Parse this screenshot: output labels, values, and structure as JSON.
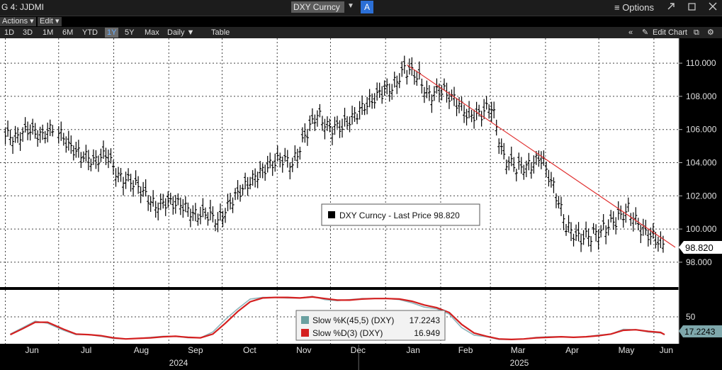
{
  "window": {
    "title": "G 4: JJDMI",
    "ticker": "DXY Curncy",
    "ticker_dropdown": "▼",
    "a_button": "A",
    "options_label": "≡ Options",
    "icons": [
      "expand-icon",
      "minimize-icon",
      "close-icon"
    ]
  },
  "menus": {
    "actions": "Actions ▾",
    "edit": "Edit ▾"
  },
  "ranges": [
    "1D",
    "3D",
    "1M",
    "6M",
    "YTD",
    "1Y",
    "5Y",
    "Max"
  ],
  "active_range": "1Y",
  "period": "Daily ▼",
  "table_label": "Table",
  "edit_chart_label": "Edit Chart",
  "chart_data": [
    {
      "type": "line",
      "style": "ohlc-bars",
      "series": [
        {
          "name": "DXY Curncy - Last Price",
          "last_value": 98.82,
          "last_label": "98.820",
          "color": "#000000",
          "x": [
            "2024-06-01",
            "2024-06-08",
            "2024-06-15",
            "2024-06-22",
            "2024-07-01",
            "2024-07-08",
            "2024-07-15",
            "2024-07-22",
            "2024-07-29",
            "2024-08-05",
            "2024-08-12",
            "2024-08-19",
            "2024-08-26",
            "2024-09-02",
            "2024-09-09",
            "2024-09-16",
            "2024-09-23",
            "2024-09-30",
            "2024-10-07",
            "2024-10-14",
            "2024-10-21",
            "2024-10-28",
            "2024-11-04",
            "2024-11-11",
            "2024-11-18",
            "2024-11-25",
            "2024-12-02",
            "2024-12-09",
            "2024-12-16",
            "2024-12-23",
            "2024-12-30",
            "2025-01-06",
            "2025-01-13",
            "2025-01-20",
            "2025-01-27",
            "2025-02-03",
            "2025-02-10",
            "2025-02-17",
            "2025-02-24",
            "2025-03-03",
            "2025-03-10",
            "2025-03-17",
            "2025-03-24",
            "2025-03-31",
            "2025-04-07",
            "2025-04-14",
            "2025-04-21",
            "2025-04-28",
            "2025-05-05",
            "2025-05-12",
            "2025-05-19",
            "2025-05-26",
            "2025-06-02",
            "2025-06-09"
          ],
          "values": [
            105.6,
            105.9,
            105.7,
            106.0,
            105.1,
            104.4,
            104.2,
            104.4,
            103.3,
            102.8,
            102.3,
            101.3,
            101.7,
            101.4,
            101.0,
            100.8,
            100.6,
            101.5,
            102.5,
            103.1,
            103.8,
            104.2,
            104.0,
            105.5,
            107.0,
            106.0,
            106.2,
            106.8,
            107.6,
            108.1,
            108.6,
            109.6,
            109.3,
            108.0,
            108.4,
            107.8,
            107.0,
            106.8,
            107.5,
            104.2,
            103.7,
            103.8,
            104.3,
            102.5,
            100.2,
            99.4,
            99.6,
            100.0,
            100.5,
            101.2,
            100.0,
            99.5,
            98.9,
            98.8
          ]
        }
      ],
      "trendline": {
        "start": [
          "2025-01-13",
          109.9
        ],
        "end": [
          "2025-06-13",
          98.9
        ],
        "color": "#e03030"
      },
      "ylim": [
        96.5,
        111.5
      ],
      "yticks": [
        "110.000",
        "108.000",
        "106.000",
        "104.000",
        "102.000",
        "100.000",
        "98.000"
      ],
      "grid": true,
      "legend": {
        "text": "DXY Curncy - Last Price 98.820",
        "placement": "center-right"
      }
    },
    {
      "type": "line",
      "series": [
        {
          "name": "Slow %K(45,5) (DXY)",
          "legend_value": "17.2243",
          "color": "#8fb6bc",
          "values": [
            18,
            30,
            42,
            38,
            25,
            17,
            17,
            14,
            10,
            9,
            10,
            12,
            14,
            14,
            11,
            11,
            22,
            45,
            65,
            83,
            86,
            86,
            85,
            85,
            88,
            82,
            80,
            82,
            84,
            84,
            84,
            82,
            76,
            68,
            65,
            55,
            30,
            16,
            13,
            8,
            8,
            9,
            12,
            13,
            13,
            12,
            13,
            16,
            18,
            27,
            26,
            22,
            20,
            17
          ]
        },
        {
          "name": "Slow %D(3) (DXY)",
          "legend_value": "16.949",
          "color": "#d42020",
          "values": [
            17,
            28,
            40,
            40,
            27,
            18,
            17,
            15,
            11,
            9,
            10,
            11,
            13,
            14,
            12,
            11,
            18,
            38,
            60,
            78,
            85,
            86,
            86,
            85,
            87,
            84,
            81,
            81,
            83,
            84,
            84,
            83,
            79,
            72,
            67,
            58,
            36,
            20,
            14,
            9,
            8,
            9,
            11,
            12,
            13,
            12,
            13,
            15,
            18,
            25,
            26,
            23,
            21,
            17
          ]
        }
      ],
      "ylim": [
        0,
        100
      ],
      "yticks": [
        "50"
      ],
      "last_label": "17.2243",
      "legend": {
        "placement": "center"
      }
    }
  ],
  "x_axis": {
    "months": [
      "Jun",
      "Jul",
      "Aug",
      "Sep",
      "Oct",
      "Nov",
      "Dec",
      "Jan",
      "Feb",
      "Mar",
      "Apr",
      "May",
      "Jun"
    ],
    "years": [
      "2024",
      "2025"
    ]
  }
}
